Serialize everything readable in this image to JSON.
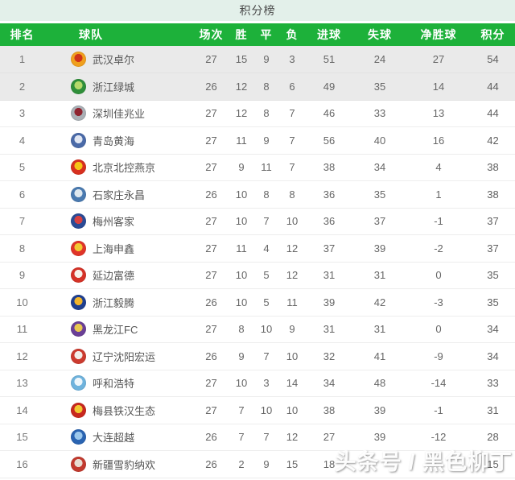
{
  "title": "积分榜",
  "watermark": "头条号 / 黑色柳丁",
  "colors": {
    "header_green": "#1db13a",
    "title_bar_bg": "#e3f0ea",
    "highlight_row_bg": "#eaeaea",
    "header_text": "#ffffff",
    "body_text": "#666666"
  },
  "table": {
    "keys": [
      "rank",
      "team",
      "played",
      "win",
      "draw",
      "loss",
      "gf",
      "ga",
      "gd",
      "pts"
    ],
    "columns": [
      "排名",
      "球队",
      "场次",
      "胜",
      "平",
      "负",
      "进球",
      "失球",
      "净胜球",
      "积分"
    ],
    "rows": [
      {
        "rank": "1",
        "team": "武汉卓尔",
        "played": "27",
        "win": "15",
        "draw": "9",
        "loss": "3",
        "gf": "51",
        "ga": "24",
        "gd": "27",
        "pts": "54",
        "highlight": true,
        "logo": {
          "outer": "#f0a01e",
          "inner": "#cf3318"
        }
      },
      {
        "rank": "2",
        "team": "浙江绿城",
        "played": "26",
        "win": "12",
        "draw": "8",
        "loss": "6",
        "gf": "49",
        "ga": "35",
        "gd": "14",
        "pts": "44",
        "highlight": true,
        "logo": {
          "outer": "#2f8f3a",
          "inner": "#b5d96a"
        }
      },
      {
        "rank": "3",
        "team": "深圳佳兆业",
        "played": "27",
        "win": "12",
        "draw": "8",
        "loss": "7",
        "gf": "46",
        "ga": "33",
        "gd": "13",
        "pts": "44",
        "highlight": false,
        "logo": {
          "outer": "#aab0b6",
          "inner": "#8f2430"
        }
      },
      {
        "rank": "4",
        "team": "青岛黄海",
        "played": "27",
        "win": "11",
        "draw": "9",
        "loss": "7",
        "gf": "56",
        "ga": "40",
        "gd": "16",
        "pts": "42",
        "highlight": false,
        "logo": {
          "outer": "#4a6aa8",
          "inner": "#e0e6f2"
        }
      },
      {
        "rank": "5",
        "team": "北京北控燕京",
        "played": "27",
        "win": "9",
        "draw": "11",
        "loss": "7",
        "gf": "38",
        "ga": "34",
        "gd": "4",
        "pts": "38",
        "highlight": false,
        "logo": {
          "outer": "#d8301f",
          "inner": "#f5c518"
        }
      },
      {
        "rank": "6",
        "team": "石家庄永昌",
        "played": "26",
        "win": "10",
        "draw": "8",
        "loss": "8",
        "gf": "36",
        "ga": "35",
        "gd": "1",
        "pts": "38",
        "highlight": false,
        "logo": {
          "outer": "#4a7ab0",
          "inner": "#dfe8ef"
        }
      },
      {
        "rank": "7",
        "team": "梅州客家",
        "played": "27",
        "win": "10",
        "draw": "7",
        "loss": "10",
        "gf": "36",
        "ga": "37",
        "gd": "-1",
        "pts": "37",
        "highlight": false,
        "logo": {
          "outer": "#2a4b96",
          "inner": "#d84040"
        }
      },
      {
        "rank": "8",
        "team": "上海申鑫",
        "played": "27",
        "win": "11",
        "draw": "4",
        "loss": "12",
        "gf": "37",
        "ga": "39",
        "gd": "-2",
        "pts": "37",
        "highlight": false,
        "logo": {
          "outer": "#e03428",
          "inner": "#f2c832"
        }
      },
      {
        "rank": "9",
        "team": "延边富德",
        "played": "27",
        "win": "10",
        "draw": "5",
        "loss": "12",
        "gf": "31",
        "ga": "31",
        "gd": "0",
        "pts": "35",
        "highlight": false,
        "logo": {
          "outer": "#d53227",
          "inner": "#f7f2ea"
        }
      },
      {
        "rank": "10",
        "team": "浙江毅腾",
        "played": "26",
        "win": "10",
        "draw": "5",
        "loss": "11",
        "gf": "39",
        "ga": "42",
        "gd": "-3",
        "pts": "35",
        "highlight": false,
        "logo": {
          "outer": "#1f3f90",
          "inner": "#f2b42a"
        }
      },
      {
        "rank": "11",
        "team": "黑龙江FC",
        "played": "27",
        "win": "8",
        "draw": "10",
        "loss": "9",
        "gf": "31",
        "ga": "31",
        "gd": "0",
        "pts": "34",
        "highlight": false,
        "logo": {
          "outer": "#6a3f96",
          "inner": "#e9c84f"
        }
      },
      {
        "rank": "12",
        "team": "辽宁沈阳宏运",
        "played": "26",
        "win": "9",
        "draw": "7",
        "loss": "10",
        "gf": "32",
        "ga": "41",
        "gd": "-9",
        "pts": "34",
        "highlight": false,
        "logo": {
          "outer": "#cc3b2f",
          "inner": "#f2efe9"
        }
      },
      {
        "rank": "13",
        "team": "呼和浩特",
        "played": "27",
        "win": "10",
        "draw": "3",
        "loss": "14",
        "gf": "34",
        "ga": "48",
        "gd": "-14",
        "pts": "33",
        "highlight": false,
        "logo": {
          "outer": "#6fb3dd",
          "inner": "#eef6fb"
        }
      },
      {
        "rank": "14",
        "team": "梅县铁汉生态",
        "played": "27",
        "win": "7",
        "draw": "10",
        "loss": "10",
        "gf": "38",
        "ga": "39",
        "gd": "-1",
        "pts": "31",
        "highlight": false,
        "logo": {
          "outer": "#c8281e",
          "inner": "#f2c832"
        }
      },
      {
        "rank": "15",
        "team": "大连超越",
        "played": "26",
        "win": "7",
        "draw": "7",
        "loss": "12",
        "gf": "27",
        "ga": "39",
        "gd": "-12",
        "pts": "28",
        "highlight": false,
        "logo": {
          "outer": "#2a64b2",
          "inner": "#9cc8ec"
        }
      },
      {
        "rank": "16",
        "team": "新疆雪豹纳欢",
        "played": "26",
        "win": "2",
        "draw": "9",
        "loss": "15",
        "gf": "18",
        "ga": "",
        "gd": "",
        "pts": "15",
        "highlight": false,
        "logo": {
          "outer": "#c23a2e",
          "inner": "#e8ddd2"
        }
      }
    ]
  }
}
